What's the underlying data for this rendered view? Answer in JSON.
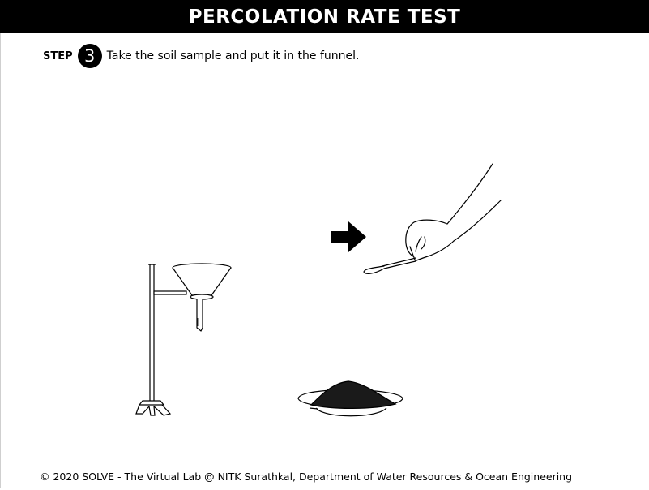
{
  "header": {
    "title": "PERCOLATION RATE TEST"
  },
  "step": {
    "label": "STEP",
    "number": "3",
    "instruction": "Take the soil sample and put it in the funnel."
  },
  "scene": {
    "items": [
      "funnel-stand",
      "next-arrow",
      "hand-with-spatula",
      "soil-dish"
    ],
    "colors": {
      "ink": "#000000",
      "soil": "#1a1a1a"
    }
  },
  "footer": {
    "text": "© 2020 SOLVE - The Virtual Lab @ NITK Surathkal, Department of Water Resources & Ocean Engineering"
  }
}
